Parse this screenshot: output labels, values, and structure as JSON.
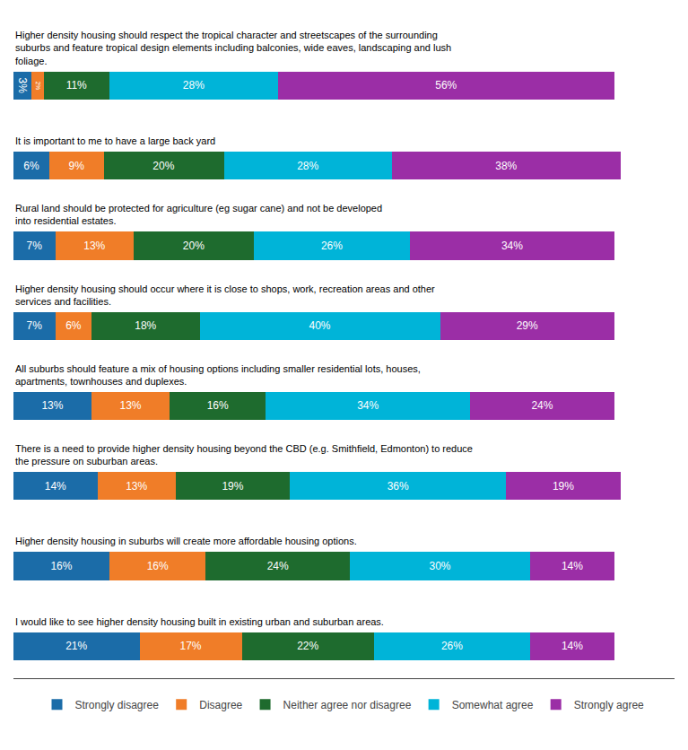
{
  "chart_data": {
    "type": "bar",
    "orientation": "horizontal",
    "stacked": true,
    "categories": [
      "Higher density housing should respect the tropical character and streetscapes of the surrounding\nsuburbs and feature tropical design elements including balconies, wide eaves, landscaping and lush\nfoliage.",
      "It is important to me to have a large back yard",
      "Rural land should be protected for agriculture (eg sugar cane) and not be developed\ninto residential estates.",
      "Higher density housing should occur where it is close to shops, work, recreation areas and other\nservices and facilities.",
      "All suburbs should feature a mix of housing options including smaller residential lots, houses,\napartments, townhouses and duplexes.",
      "There is a need to provide higher density housing beyond the CBD (e.g. Smithfield, Edmonton) to reduce\nthe pressure on suburban areas.",
      "Higher density housing in suburbs will create more affordable housing options.",
      "I would like to see higher density housing built in existing urban and suburban areas."
    ],
    "series": [
      {
        "name": "Strongly disagree",
        "color": "#1b6ca8",
        "values": [
          3,
          6,
          7,
          7,
          13,
          14,
          16,
          21
        ],
        "value_labels": [
          "3%",
          "6%",
          "7%",
          "7%",
          "13%",
          "14%",
          "16%",
          "21%"
        ]
      },
      {
        "name": "Disagree",
        "color": "#f07d28",
        "values": [
          2,
          9,
          13,
          6,
          13,
          13,
          16,
          17
        ],
        "value_labels": [
          "2%",
          "9%",
          "13%",
          "6%",
          "13%",
          "13%",
          "16%",
          "17%"
        ]
      },
      {
        "name": "Neither agree nor disagree",
        "color": "#1e6b2e",
        "values": [
          11,
          20,
          20,
          18,
          16,
          19,
          24,
          22
        ],
        "value_labels": [
          "11%",
          "20%",
          "20%",
          "18%",
          "16%",
          "19%",
          "24%",
          "22%"
        ]
      },
      {
        "name": "Somewhat agree",
        "color": "#00b4d8",
        "values": [
          28,
          28,
          26,
          40,
          34,
          36,
          30,
          26
        ],
        "value_labels": [
          "28%",
          "28%",
          "26%",
          "40%",
          "34%",
          "36%",
          "30%",
          "26%"
        ]
      },
      {
        "name": "Strongly agree",
        "color": "#9b2ea6",
        "values": [
          56,
          38,
          34,
          29,
          24,
          19,
          14,
          14
        ],
        "value_labels": [
          "56%",
          "38%",
          "34%",
          "29%",
          "24%",
          "19%",
          "14%",
          "14%"
        ]
      }
    ],
    "xlim": [
      0,
      110
    ],
    "data_labels": true,
    "tick_labels": false,
    "grid": false,
    "legend": "bottom"
  }
}
